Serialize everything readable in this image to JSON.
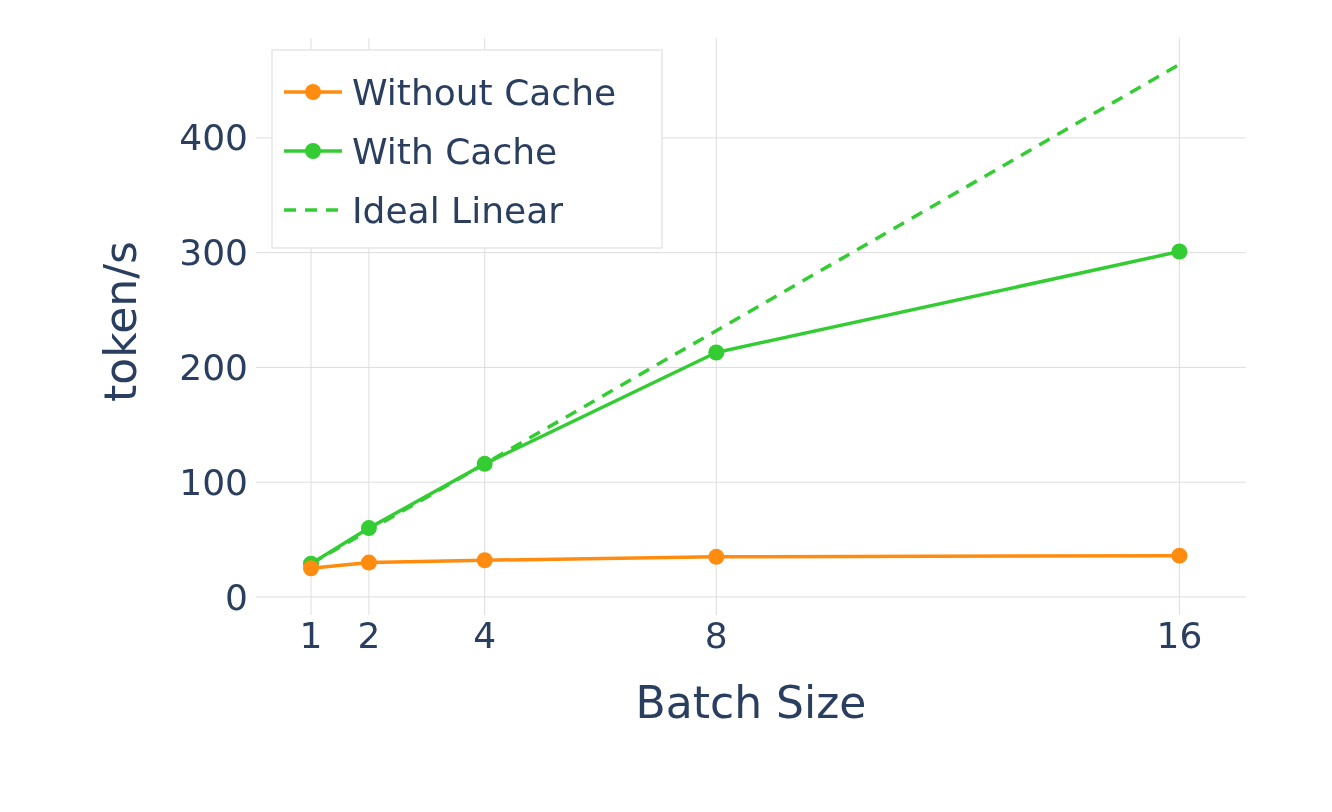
{
  "chart_data": {
    "type": "line",
    "xlabel": "Batch Size",
    "ylabel": "token/s",
    "x": [
      1,
      2,
      4,
      8,
      16
    ],
    "series": [
      {
        "name": "Without Cache",
        "color": "#ff8c0f",
        "values": [
          25,
          30,
          32,
          35,
          36
        ],
        "marker": "circle",
        "line_style": "solid"
      },
      {
        "name": "With Cache",
        "color": "#33cc33",
        "values": [
          29,
          60,
          116,
          213,
          301
        ],
        "marker": "circle",
        "line_style": "solid"
      },
      {
        "name": "Ideal Linear",
        "color": "#33cc33",
        "values": [
          29,
          58,
          116,
          232,
          464
        ],
        "marker": "none",
        "line_style": "dashed"
      }
    ],
    "xlim": [
      0.05,
      17.15
    ],
    "xticks": [
      1,
      2,
      4,
      8,
      16
    ],
    "ylim": [
      -7,
      487
    ],
    "yticks": [
      0,
      100,
      200,
      300,
      400
    ],
    "grid": true,
    "legend": "top left"
  }
}
